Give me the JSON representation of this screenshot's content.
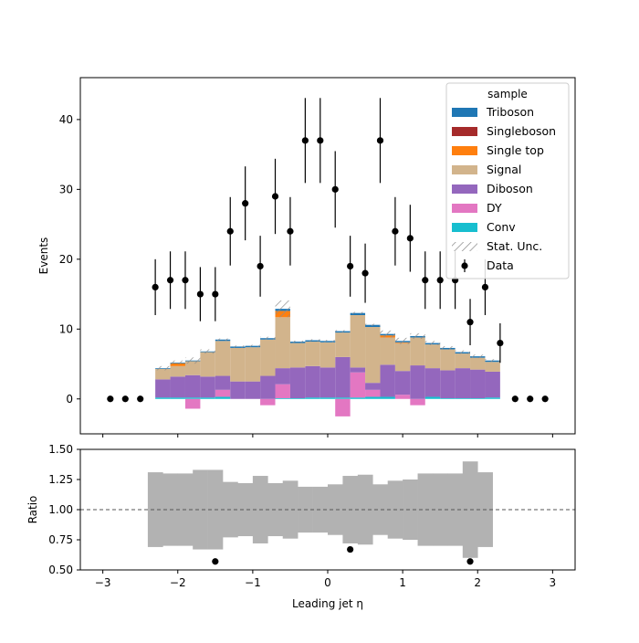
{
  "chart_data": [
    {
      "type": "histogram",
      "xlim": [
        -3.3,
        3.3
      ],
      "ylim": [
        -5,
        46
      ],
      "ylabel": "Events",
      "yticks": [
        0,
        10,
        20,
        30,
        40
      ],
      "grid": false,
      "legend": {
        "title": "sample",
        "placement": "top-right",
        "entries": [
          {
            "label": "Triboson",
            "color": "#1f77b4",
            "kind": "patch"
          },
          {
            "label": "Singleboson",
            "color": "#a52a2a",
            "kind": "patch"
          },
          {
            "label": "Single top",
            "color": "#ff7f0e",
            "kind": "patch"
          },
          {
            "label": "Signal",
            "color": "#d2b48c",
            "kind": "patch"
          },
          {
            "label": "Diboson",
            "color": "#9467bd",
            "kind": "patch"
          },
          {
            "label": "DY",
            "color": "#e377c2",
            "kind": "patch"
          },
          {
            "label": "Conv",
            "color": "#17becf",
            "kind": "patch"
          },
          {
            "label": "Stat. Unc.",
            "color": "#8c8c8c",
            "kind": "hatch"
          },
          {
            "label": "Data",
            "color": "#000000",
            "kind": "errorbar"
          }
        ]
      },
      "bins": {
        "start": -2.3,
        "width": 0.2,
        "count": 23
      },
      "series": [
        {
          "name": "Conv",
          "color": "#17becf",
          "values": [
            0.2,
            0.2,
            0.2,
            0.2,
            0.3,
            0,
            0,
            0,
            0.1,
            0.1,
            0.2,
            0.2,
            0.2,
            0.2,
            0.3,
            0.3,
            0,
            0,
            0.3,
            0.1,
            0.1,
            0.1,
            0.2
          ]
        },
        {
          "name": "DY",
          "color": "#e377c2",
          "values": [
            0,
            0,
            -1.4,
            0,
            1.0,
            0,
            0,
            -0.9,
            2.0,
            0,
            0,
            0,
            -2.5,
            3.6,
            1.0,
            0,
            0.6,
            -0.9,
            0,
            0,
            0,
            0,
            0
          ]
        },
        {
          "name": "Diboson",
          "color": "#9467bd",
          "values": [
            2.6,
            3.0,
            3.2,
            3.0,
            2.0,
            2.5,
            2.5,
            3.3,
            2.3,
            4.4,
            4.5,
            4.3,
            5.8,
            0.7,
            1.0,
            4.6,
            3.4,
            4.8,
            4.1,
            4.0,
            4.3,
            4.1,
            3.7
          ]
        },
        {
          "name": "Signal",
          "color": "#d2b48c",
          "values": [
            1.5,
            1.5,
            2.0,
            3.5,
            5.0,
            4.8,
            4.9,
            5.2,
            7.3,
            3.5,
            3.5,
            3.6,
            3.5,
            7.5,
            8.0,
            3.9,
            4.0,
            4.0,
            3.4,
            3.0,
            2.1,
            1.7,
            1.4
          ]
        },
        {
          "name": "Single top",
          "color": "#ff7f0e",
          "values": [
            0,
            0.4,
            0,
            0,
            0,
            0,
            0,
            0,
            0.9,
            0,
            0,
            0,
            0,
            0,
            0,
            0.3,
            0.1,
            0,
            0,
            0,
            0,
            0,
            0
          ]
        },
        {
          "name": "Singleboson",
          "color": "#a52a2a",
          "values": [
            0,
            0,
            0,
            0,
            0,
            0,
            0,
            0,
            0,
            0,
            0,
            0,
            0,
            0,
            0,
            0,
            0,
            0,
            0,
            0,
            0,
            0,
            0
          ]
        },
        {
          "name": "Triboson",
          "color": "#1f77b4",
          "values": [
            0.1,
            0.1,
            0.1,
            0.1,
            0.2,
            0.2,
            0.2,
            0.2,
            0.3,
            0.2,
            0.2,
            0.2,
            0.2,
            0.3,
            0.3,
            0.2,
            0.2,
            0.2,
            0.2,
            0.2,
            0.2,
            0.2,
            0.2
          ]
        }
      ],
      "stat_unc": [
        0.6,
        0.6,
        0.9,
        0.6,
        0.3,
        0.3,
        0.3,
        0.4,
        2.4,
        0.3,
        0.3,
        0.3,
        0.3,
        0.3,
        0.3,
        1.0,
        0.9,
        0.8,
        0.6,
        0.5,
        0.5,
        0.5,
        0.4
      ],
      "data": {
        "x": [
          -2.9,
          -2.7,
          -2.5,
          -2.3,
          -2.1,
          -1.9,
          -1.7,
          -1.5,
          -1.3,
          -1.1,
          -0.9,
          -0.7,
          -0.5,
          -0.3,
          -0.1,
          0.1,
          0.3,
          0.5,
          0.7,
          0.9,
          1.1,
          1.3,
          1.5,
          1.7,
          1.9,
          2.1,
          2.3,
          2.5,
          2.7,
          2.9
        ],
        "y": [
          0,
          0,
          0,
          16,
          17,
          17,
          15,
          15,
          24,
          28,
          19,
          29,
          24,
          37,
          37,
          30,
          19,
          18,
          37,
          24,
          23,
          17,
          17,
          17,
          11,
          16,
          8,
          0,
          0,
          0
        ]
      }
    },
    {
      "type": "ratio",
      "xlabel": "Leading jet  η",
      "ylabel": "Ratio",
      "xlim": [
        -3.3,
        3.3
      ],
      "ylim": [
        0.5,
        1.5
      ],
      "xticks": [
        -3,
        -2,
        -1,
        0,
        1,
        2,
        3
      ],
      "yticks": [
        0.5,
        0.75,
        1.0,
        1.25,
        1.5
      ],
      "reference_line": 1.0,
      "unc_band": {
        "color": "#b2b2b2",
        "bins": {
          "start": -2.4,
          "width": 0.2
        },
        "half_width": [
          0.31,
          0.3,
          0.3,
          0.33,
          0.33,
          0.23,
          0.22,
          0.28,
          0.22,
          0.24,
          0.19,
          0.19,
          0.21,
          0.28,
          0.29,
          0.21,
          0.24,
          0.25,
          0.3,
          0.3,
          0.3,
          0.4,
          0.31
        ]
      },
      "points": {
        "x": [
          -1.5,
          0.3,
          1.9
        ],
        "y": [
          0.57,
          0.67,
          0.57
        ]
      }
    }
  ]
}
